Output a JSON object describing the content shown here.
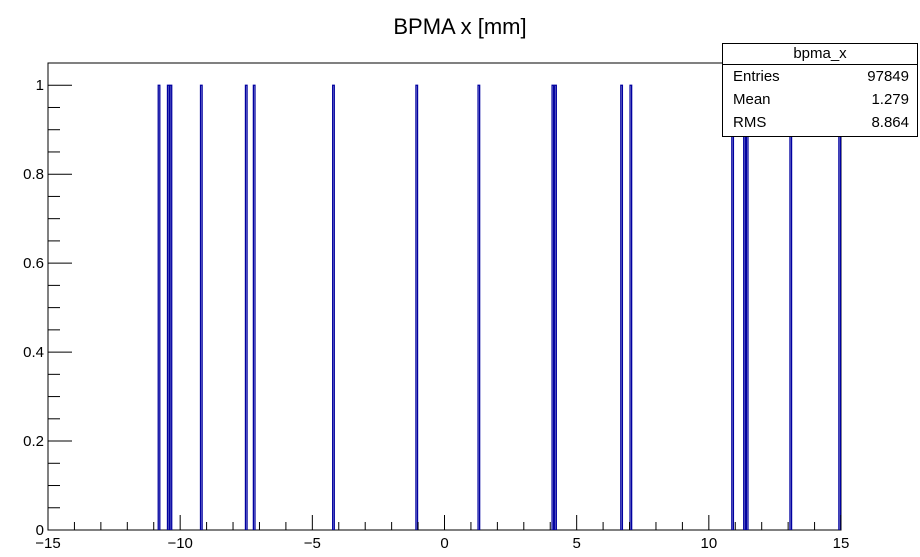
{
  "chart_data": {
    "type": "histogram",
    "title": "BPMA x [mm]",
    "xlim": [
      -15,
      15
    ],
    "ylim": [
      0,
      1.05
    ],
    "x_ticks": [
      -15,
      -10,
      -5,
      0,
      5,
      10,
      15
    ],
    "x_tick_labels": [
      "−15",
      "−10",
      "−5",
      "0",
      "5",
      "10",
      "15"
    ],
    "y_ticks": [
      0,
      0.2,
      0.4,
      0.6,
      0.8,
      1
    ],
    "y_tick_labels": [
      "0",
      "0.2",
      "0.4",
      "0.6",
      "0.8",
      "1"
    ],
    "bin_width": 0.06,
    "filled_bins": [
      -10.8,
      -10.45,
      -10.35,
      -9.2,
      -7.5,
      -7.2,
      -4.2,
      -1.05,
      1.3,
      4.1,
      4.2,
      6.7,
      7.05,
      10.9,
      11.35,
      11.45,
      13.1,
      14.95
    ],
    "bin_content": 1,
    "line_color": "#0000a0"
  },
  "statbox": {
    "name": "bpma_x",
    "rows": [
      {
        "label": "Entries",
        "value": "97849"
      },
      {
        "label": "Mean",
        "value": "1.279"
      },
      {
        "label": "RMS",
        "value": "8.864"
      }
    ]
  }
}
